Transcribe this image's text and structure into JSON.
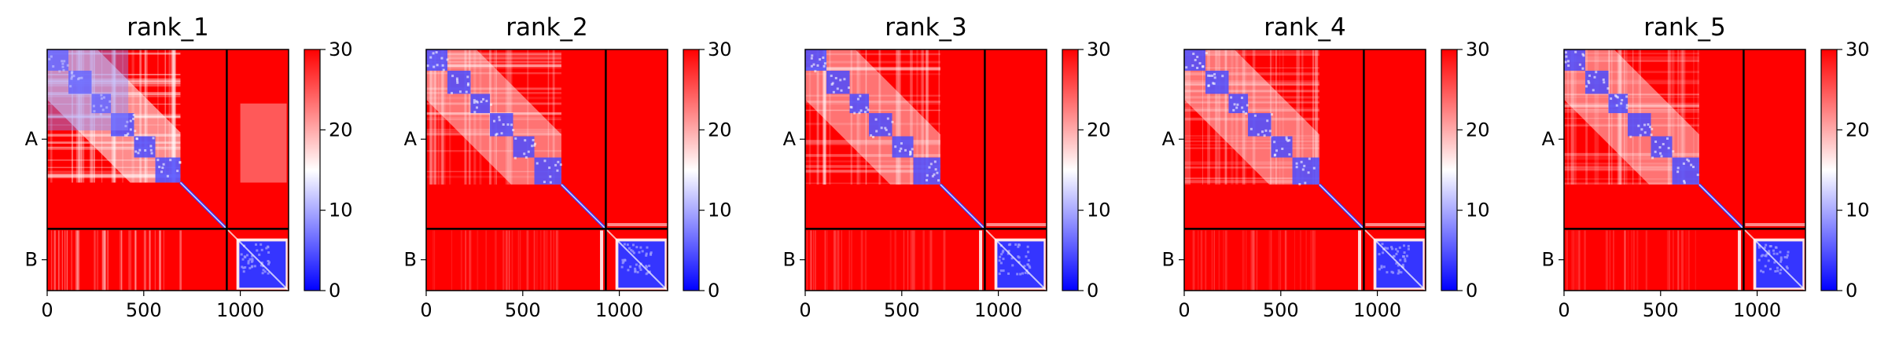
{
  "chart_data": [
    {
      "type": "heatmap",
      "title": "rank_1",
      "variant": 1,
      "xticks": [
        "0",
        "500",
        "1000"
      ],
      "xtick_values": [
        0,
        500,
        1000
      ],
      "xlim": [
        0,
        1250
      ],
      "yticks": [
        "A",
        "B"
      ],
      "chain_boundary": 930,
      "colorbar": {
        "ticks": [
          "0",
          "10",
          "20",
          "30"
        ],
        "tick_values": [
          0,
          10,
          20,
          30
        ],
        "vmin": 0,
        "vmax": 30,
        "colormap": "bwr"
      }
    },
    {
      "type": "heatmap",
      "title": "rank_2",
      "variant": 2,
      "xticks": [
        "0",
        "500",
        "1000"
      ],
      "xtick_values": [
        0,
        500,
        1000
      ],
      "xlim": [
        0,
        1250
      ],
      "yticks": [
        "A",
        "B"
      ],
      "chain_boundary": 930,
      "colorbar": {
        "ticks": [
          "0",
          "10",
          "20",
          "30"
        ],
        "tick_values": [
          0,
          10,
          20,
          30
        ],
        "vmin": 0,
        "vmax": 30,
        "colormap": "bwr"
      }
    },
    {
      "type": "heatmap",
      "title": "rank_3",
      "variant": 3,
      "xticks": [
        "0",
        "500",
        "1000"
      ],
      "xtick_values": [
        0,
        500,
        1000
      ],
      "xlim": [
        0,
        1250
      ],
      "yticks": [
        "A",
        "B"
      ],
      "chain_boundary": 930,
      "colorbar": {
        "ticks": [
          "0",
          "10",
          "20",
          "30"
        ],
        "tick_values": [
          0,
          10,
          20,
          30
        ],
        "vmin": 0,
        "vmax": 30,
        "colormap": "bwr"
      }
    },
    {
      "type": "heatmap",
      "title": "rank_4",
      "variant": 4,
      "xticks": [
        "0",
        "500",
        "1000"
      ],
      "xtick_values": [
        0,
        500,
        1000
      ],
      "xlim": [
        0,
        1250
      ],
      "yticks": [
        "A",
        "B"
      ],
      "chain_boundary": 930,
      "colorbar": {
        "ticks": [
          "0",
          "10",
          "20",
          "30"
        ],
        "tick_values": [
          0,
          10,
          20,
          30
        ],
        "vmin": 0,
        "vmax": 30,
        "colormap": "bwr"
      }
    },
    {
      "type": "heatmap",
      "title": "rank_5",
      "variant": 5,
      "xticks": [
        "0",
        "500",
        "1000"
      ],
      "xtick_values": [
        0,
        500,
        1000
      ],
      "xlim": [
        0,
        1250
      ],
      "yticks": [
        "A",
        "B"
      ],
      "chain_boundary": 930,
      "colorbar": {
        "ticks": [
          "0",
          "10",
          "20",
          "30"
        ],
        "tick_values": [
          0,
          10,
          20,
          30
        ],
        "vmin": 0,
        "vmax": 30,
        "colormap": "bwr"
      }
    }
  ],
  "colors": {
    "low": "#0000ff",
    "mid": "#ffffff",
    "high": "#ff0000",
    "divider": "#000000"
  }
}
